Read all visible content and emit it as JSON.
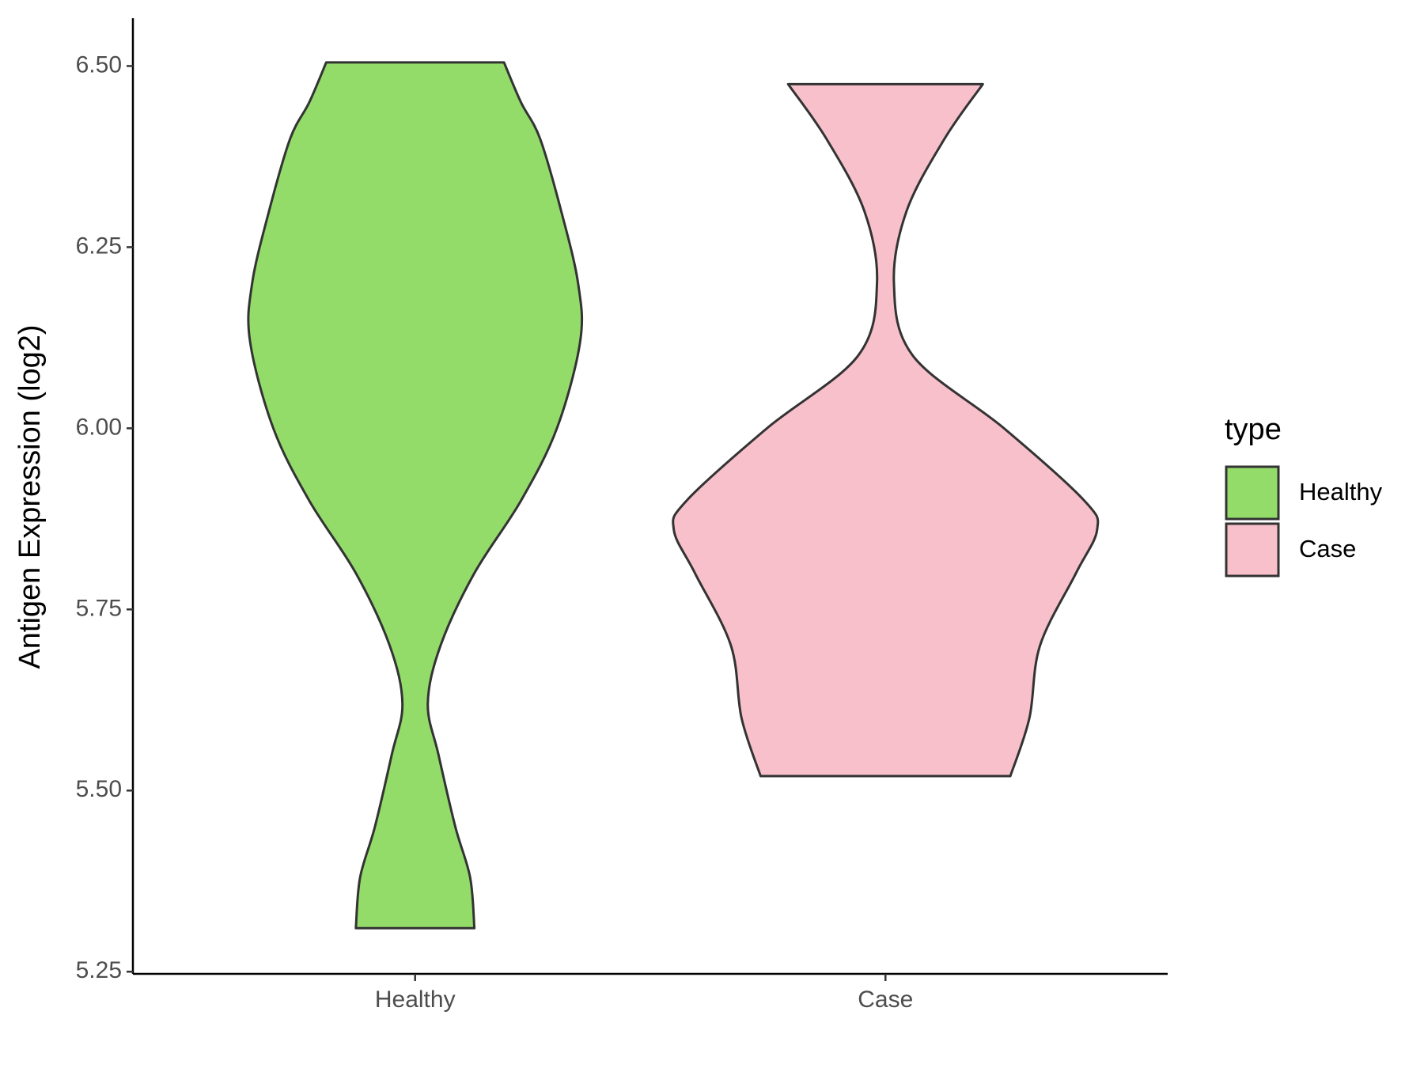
{
  "chart_data": {
    "type": "violin",
    "ylabel": "Antigen Expression (log2)",
    "categories": [
      "Healthy",
      "Case"
    ],
    "ylim": [
      5.247,
      6.566
    ],
    "yticks": [
      {
        "value": 5.25,
        "label": "5.25"
      },
      {
        "value": 5.5,
        "label": "5.50"
      },
      {
        "value": 5.75,
        "label": "5.75"
      },
      {
        "value": 6,
        "label": "6.00"
      },
      {
        "value": 6.25,
        "label": "6.25"
      },
      {
        "value": 6.5,
        "label": "6.50"
      }
    ],
    "legend_title": "type",
    "legend": "right",
    "series": [
      {
        "name": "Healthy",
        "color": "#93dc6a",
        "y": [
          6.505,
          6.45,
          6.4,
          6.3,
          6.2,
          6.12,
          6.0,
          5.9,
          5.8,
          5.7,
          5.62,
          5.55,
          5.45,
          5.38,
          5.31
        ],
        "density": [
          0.42,
          0.5,
          0.59,
          0.69,
          0.77,
          0.78,
          0.67,
          0.5,
          0.28,
          0.12,
          0.06,
          0.11,
          0.19,
          0.26,
          0.28
        ]
      },
      {
        "name": "Case",
        "color": "#f8c0cb",
        "y": [
          6.475,
          6.4,
          6.3,
          6.2,
          6.1,
          6.0,
          5.9,
          5.86,
          5.8,
          5.7,
          5.6,
          5.52
        ],
        "density": [
          0.46,
          0.28,
          0.1,
          0.04,
          0.13,
          0.56,
          0.94,
          1.0,
          0.9,
          0.73,
          0.68,
          0.59
        ]
      }
    ]
  }
}
